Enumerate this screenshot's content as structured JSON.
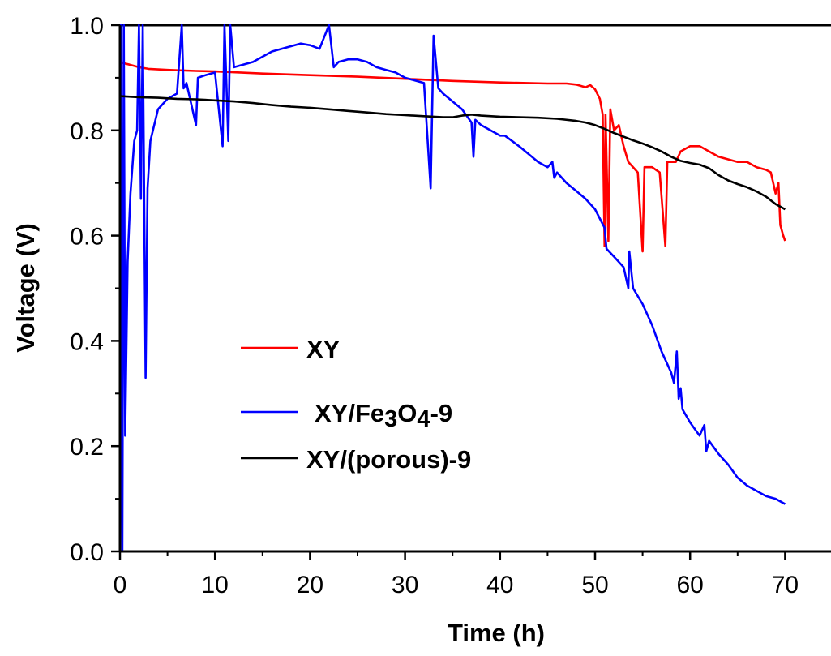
{
  "chart_data": {
    "type": "line",
    "title": "",
    "xlabel": "Time (h)",
    "ylabel": "Voltage (V)",
    "xlim": [
      0,
      75
    ],
    "ylim": [
      0.0,
      1.0
    ],
    "x_ticks": [
      0,
      10,
      20,
      30,
      40,
      50,
      60,
      70
    ],
    "x_tick_labels": [
      "0",
      "10",
      "20",
      "30",
      "40",
      "50",
      "60",
      "70"
    ],
    "y_ticks": [
      0.0,
      0.2,
      0.4,
      0.6,
      0.8,
      1.0
    ],
    "y_tick_labels": [
      "0.0",
      "0.2",
      "0.4",
      "0.6",
      "0.8",
      "1.0"
    ],
    "grid": false,
    "legend_position": "center-left",
    "legend": [
      {
        "label": "XY",
        "color": "#ff0000"
      },
      {
        "label_parts": [
          {
            "t": "XY/Fe"
          },
          {
            "t": "3",
            "sub": true
          },
          {
            "t": "O"
          },
          {
            "t": "4",
            "sub": true
          },
          {
            "t": "-9"
          }
        ],
        "color": "#0000ff"
      },
      {
        "label": "XY/(porous)-9",
        "color": "#000000"
      }
    ],
    "series": [
      {
        "color": "#ff0000",
        "points": [
          [
            0,
            0.95
          ],
          [
            0.05,
            0.8
          ],
          [
            0.1,
            0.8
          ],
          [
            0.15,
            0.93
          ],
          [
            0.3,
            0.928
          ],
          [
            1,
            0.925
          ],
          [
            2,
            0.92
          ],
          [
            3,
            0.917
          ],
          [
            5,
            0.915
          ],
          [
            8,
            0.913
          ],
          [
            10,
            0.912
          ],
          [
            15,
            0.908
          ],
          [
            20,
            0.905
          ],
          [
            25,
            0.902
          ],
          [
            30,
            0.898
          ],
          [
            35,
            0.894
          ],
          [
            40,
            0.891
          ],
          [
            45,
            0.889
          ],
          [
            47,
            0.889
          ],
          [
            48,
            0.887
          ],
          [
            49,
            0.882
          ],
          [
            49.5,
            0.886
          ],
          [
            50,
            0.878
          ],
          [
            50.5,
            0.86
          ],
          [
            50.8,
            0.83
          ],
          [
            51.0,
            0.58
          ],
          [
            51.1,
            0.83
          ],
          [
            51.4,
            0.59
          ],
          [
            51.6,
            0.84
          ],
          [
            52,
            0.8
          ],
          [
            52.5,
            0.81
          ],
          [
            53,
            0.77
          ],
          [
            53.5,
            0.74
          ],
          [
            54,
            0.73
          ],
          [
            54.5,
            0.72
          ],
          [
            55,
            0.57
          ],
          [
            55.2,
            0.73
          ],
          [
            56,
            0.73
          ],
          [
            56.8,
            0.72
          ],
          [
            57.4,
            0.58
          ],
          [
            57.6,
            0.74
          ],
          [
            58.5,
            0.74
          ],
          [
            59,
            0.76
          ],
          [
            60,
            0.77
          ],
          [
            61,
            0.77
          ],
          [
            62,
            0.76
          ],
          [
            63,
            0.75
          ],
          [
            64,
            0.745
          ],
          [
            65,
            0.74
          ],
          [
            66,
            0.74
          ],
          [
            67,
            0.73
          ],
          [
            68,
            0.725
          ],
          [
            68.5,
            0.72
          ],
          [
            69,
            0.68
          ],
          [
            69.3,
            0.7
          ],
          [
            69.5,
            0.62
          ],
          [
            69.8,
            0.6
          ],
          [
            70,
            0.59
          ]
        ]
      },
      {
        "color": "#0000ff",
        "points": [
          [
            0,
            0.96
          ],
          [
            0.1,
            1.0
          ],
          [
            0.25,
            0.0
          ],
          [
            0.4,
            1.0
          ],
          [
            0.55,
            0.22
          ],
          [
            0.8,
            0.55
          ],
          [
            1.1,
            0.68
          ],
          [
            1.5,
            0.78
          ],
          [
            1.8,
            0.8
          ],
          [
            2.0,
            1.0
          ],
          [
            2.2,
            0.67
          ],
          [
            2.4,
            1.0
          ],
          [
            2.7,
            0.33
          ],
          [
            2.9,
            0.69
          ],
          [
            3.2,
            0.78
          ],
          [
            4,
            0.84
          ],
          [
            5,
            0.86
          ],
          [
            6,
            0.87
          ],
          [
            6.5,
            1.0
          ],
          [
            6.7,
            0.88
          ],
          [
            7,
            0.89
          ],
          [
            8,
            0.81
          ],
          [
            8.2,
            0.9
          ],
          [
            9,
            0.905
          ],
          [
            10,
            0.91
          ],
          [
            10.8,
            0.77
          ],
          [
            11,
            1.0
          ],
          [
            11.4,
            0.78
          ],
          [
            11.6,
            1.0
          ],
          [
            12,
            0.92
          ],
          [
            14,
            0.93
          ],
          [
            16,
            0.95
          ],
          [
            17,
            0.955
          ],
          [
            18,
            0.96
          ],
          [
            19,
            0.965
          ],
          [
            20,
            0.962
          ],
          [
            21,
            0.955
          ],
          [
            22,
            1.0
          ],
          [
            22.5,
            0.92
          ],
          [
            23,
            0.93
          ],
          [
            24,
            0.935
          ],
          [
            25,
            0.935
          ],
          [
            26,
            0.93
          ],
          [
            27,
            0.92
          ],
          [
            28,
            0.915
          ],
          [
            29,
            0.91
          ],
          [
            30,
            0.9
          ],
          [
            31,
            0.895
          ],
          [
            32,
            0.89
          ],
          [
            32.7,
            0.69
          ],
          [
            33,
            0.98
          ],
          [
            33.5,
            0.88
          ],
          [
            34,
            0.87
          ],
          [
            35,
            0.855
          ],
          [
            36,
            0.84
          ],
          [
            37,
            0.815
          ],
          [
            37.2,
            0.75
          ],
          [
            37.4,
            0.82
          ],
          [
            38,
            0.81
          ],
          [
            39,
            0.8
          ],
          [
            40,
            0.79
          ],
          [
            40.5,
            0.79
          ],
          [
            42,
            0.77
          ],
          [
            43,
            0.755
          ],
          [
            44,
            0.74
          ],
          [
            45,
            0.73
          ],
          [
            45.5,
            0.74
          ],
          [
            45.7,
            0.71
          ],
          [
            46,
            0.72
          ],
          [
            47,
            0.7
          ],
          [
            48,
            0.685
          ],
          [
            49,
            0.67
          ],
          [
            50,
            0.65
          ],
          [
            51,
            0.615
          ],
          [
            51.2,
            0.575
          ],
          [
            52,
            0.56
          ],
          [
            53,
            0.54
          ],
          [
            53.5,
            0.5
          ],
          [
            53.6,
            0.57
          ],
          [
            54,
            0.5
          ],
          [
            55,
            0.47
          ],
          [
            56,
            0.43
          ],
          [
            57,
            0.38
          ],
          [
            58,
            0.34
          ],
          [
            58.3,
            0.32
          ],
          [
            58.6,
            0.38
          ],
          [
            58.8,
            0.29
          ],
          [
            59,
            0.31
          ],
          [
            59.2,
            0.27
          ],
          [
            60,
            0.245
          ],
          [
            61,
            0.22
          ],
          [
            61.5,
            0.24
          ],
          [
            61.7,
            0.19
          ],
          [
            62,
            0.21
          ],
          [
            63,
            0.185
          ],
          [
            64,
            0.165
          ],
          [
            65,
            0.14
          ],
          [
            66,
            0.125
          ],
          [
            67,
            0.115
          ],
          [
            68,
            0.105
          ],
          [
            69,
            0.1
          ],
          [
            69.5,
            0.095
          ],
          [
            70,
            0.09
          ]
        ]
      },
      {
        "color": "#000000",
        "points": [
          [
            0,
            0.865
          ],
          [
            2,
            0.863
          ],
          [
            4,
            0.862
          ],
          [
            6,
            0.86
          ],
          [
            8,
            0.859
          ],
          [
            10,
            0.857
          ],
          [
            12,
            0.855
          ],
          [
            14,
            0.852
          ],
          [
            16,
            0.848
          ],
          [
            18,
            0.845
          ],
          [
            20,
            0.843
          ],
          [
            22,
            0.84
          ],
          [
            24,
            0.837
          ],
          [
            26,
            0.834
          ],
          [
            28,
            0.831
          ],
          [
            30,
            0.829
          ],
          [
            32,
            0.827
          ],
          [
            34,
            0.825
          ],
          [
            35,
            0.825
          ],
          [
            36,
            0.828
          ],
          [
            37,
            0.83
          ],
          [
            38,
            0.828
          ],
          [
            40,
            0.826
          ],
          [
            42,
            0.825
          ],
          [
            44,
            0.824
          ],
          [
            46,
            0.822
          ],
          [
            48,
            0.818
          ],
          [
            49,
            0.815
          ],
          [
            50,
            0.81
          ],
          [
            51,
            0.803
          ],
          [
            52,
            0.795
          ],
          [
            53,
            0.788
          ],
          [
            54,
            0.781
          ],
          [
            55,
            0.775
          ],
          [
            56,
            0.768
          ],
          [
            57,
            0.76
          ],
          [
            58,
            0.75
          ],
          [
            59,
            0.742
          ],
          [
            60,
            0.738
          ],
          [
            61,
            0.735
          ],
          [
            62,
            0.728
          ],
          [
            63,
            0.715
          ],
          [
            64,
            0.705
          ],
          [
            65,
            0.698
          ],
          [
            66,
            0.692
          ],
          [
            67,
            0.684
          ],
          [
            68,
            0.674
          ],
          [
            69,
            0.66
          ],
          [
            70,
            0.65
          ]
        ]
      }
    ]
  }
}
